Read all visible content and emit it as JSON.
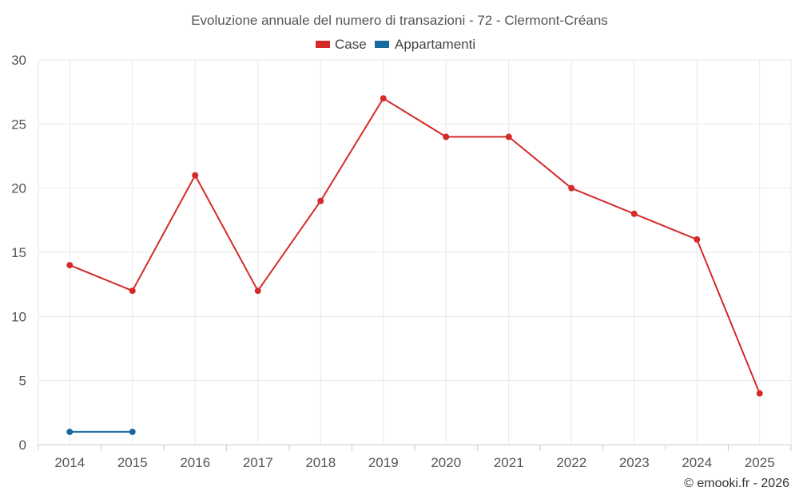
{
  "chart_data": {
    "type": "line",
    "title": "Evoluzione annuale del numero di transazioni - 72 - Clermont-Créans",
    "categories": [
      "2014",
      "2015",
      "2016",
      "2017",
      "2018",
      "2019",
      "2020",
      "2021",
      "2022",
      "2023",
      "2024",
      "2025"
    ],
    "series": [
      {
        "name": "Case",
        "color": "#d42a2a",
        "values": [
          14,
          12,
          21,
          12,
          19,
          27,
          24,
          24,
          20,
          18,
          16,
          4
        ]
      },
      {
        "name": "Appartamenti",
        "color": "#1a6aa0",
        "values": [
          1,
          1,
          null,
          null,
          null,
          null,
          null,
          null,
          null,
          null,
          null,
          null
        ]
      }
    ],
    "ylim": [
      0,
      30
    ],
    "yticks": [
      0,
      5,
      10,
      15,
      20,
      25,
      30
    ],
    "xlabel": "",
    "ylabel": "",
    "grid": true,
    "legend_position": "top-center"
  },
  "credit": "© emooki.fr - 2026"
}
